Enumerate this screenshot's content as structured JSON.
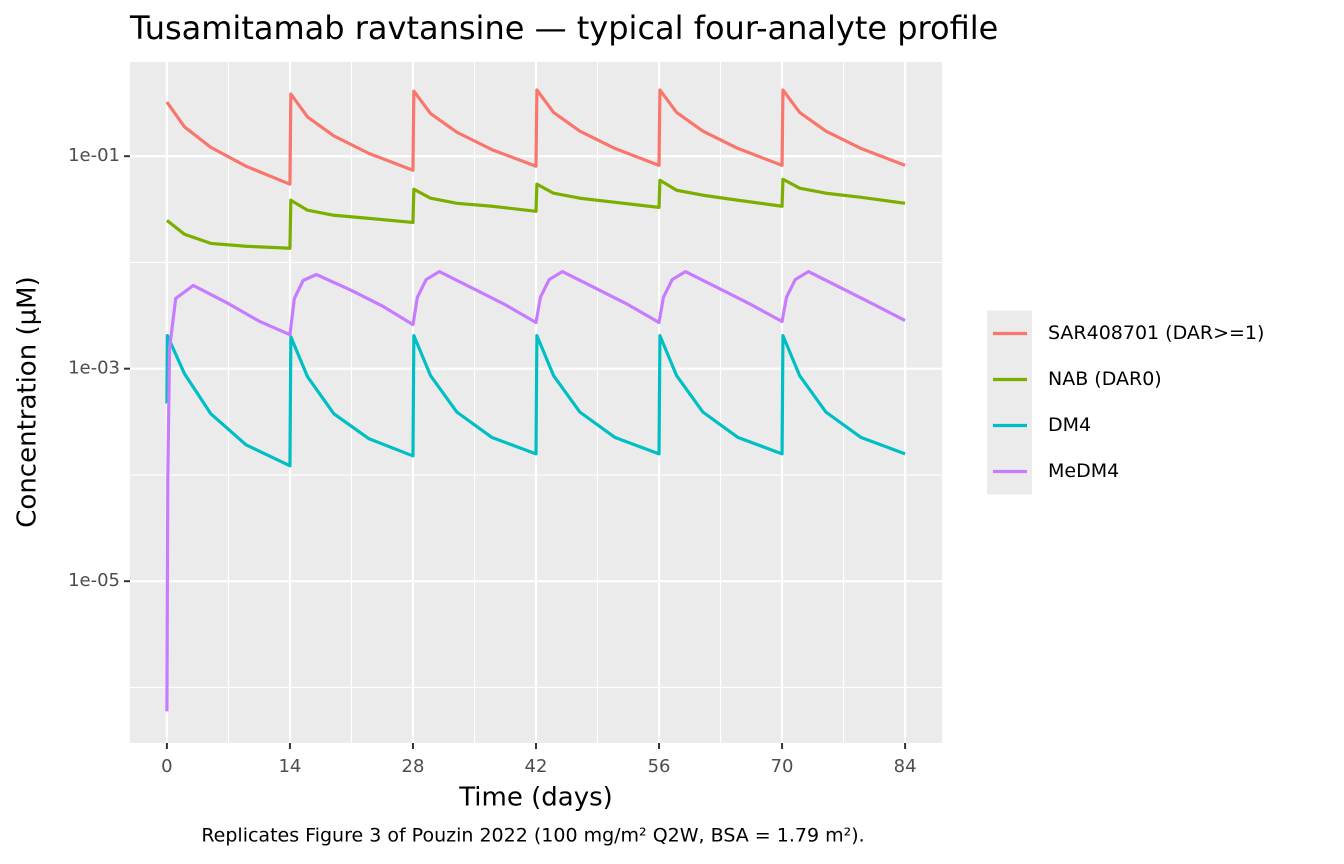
{
  "chart_data": {
    "type": "line",
    "title": "Tusamitamab ravtansine — typical four-analyte profile",
    "x_label": "Time (days)",
    "y_label": "Concentration (µM)",
    "caption": "Replicates Figure 3 of Pouzin 2022 (100 mg/m² Q2W, BSA = 1.79 m²).",
    "xlim": [
      -4.2,
      88.2
    ],
    "xticks": [
      0,
      14,
      28,
      42,
      56,
      70,
      84
    ],
    "x_minor_grid": [
      7,
      21,
      35,
      49,
      63,
      77
    ],
    "log_y": true,
    "ylim": [
      3e-07,
      0.77
    ],
    "yticks": [
      {
        "value": 0.1,
        "label": "1e-01"
      },
      {
        "value": 0.001,
        "label": "1e-03"
      },
      {
        "value": 1e-05,
        "label": "1e-05"
      }
    ],
    "y_minor_grid": [
      0.01,
      0.0001,
      1e-06
    ],
    "grid": true,
    "legend_position": "right",
    "series": [
      {
        "name": "SAR408701 (DAR>=1)",
        "color": "#F8766D",
        "x": [
          0,
          2,
          5,
          9,
          14,
          14.1,
          16,
          19,
          23,
          28,
          28.1,
          30,
          33,
          37,
          42,
          42.1,
          44,
          47,
          51,
          56,
          56.1,
          58,
          61,
          65,
          70,
          70.1,
          72,
          75,
          79,
          84
        ],
        "values": [
          0.323,
          0.189,
          0.121,
          0.0805,
          0.0545,
          0.385,
          0.234,
          0.155,
          0.106,
          0.0738,
          0.41,
          0.252,
          0.168,
          0.115,
          0.0805,
          0.42,
          0.258,
          0.172,
          0.118,
          0.082,
          0.42,
          0.258,
          0.172,
          0.118,
          0.082,
          0.42,
          0.258,
          0.172,
          0.118,
          0.082
        ]
      },
      {
        "name": "NAB (DAR0)",
        "color": "#7CAE00",
        "x": [
          0,
          2,
          5,
          9,
          14,
          14.1,
          16,
          19,
          23,
          28,
          28.1,
          30,
          33,
          37,
          42,
          42.1,
          44,
          47,
          51,
          56,
          56.1,
          58,
          61,
          65,
          70,
          70.1,
          72,
          75,
          79,
          84
        ],
        "values": [
          0.0249,
          0.0184,
          0.0151,
          0.0142,
          0.0136,
          0.0385,
          0.031,
          0.0278,
          0.026,
          0.0238,
          0.0489,
          0.0402,
          0.036,
          0.0338,
          0.0303,
          0.0545,
          0.0448,
          0.0402,
          0.0368,
          0.033,
          0.0594,
          0.0478,
          0.0429,
          0.0385,
          0.0338,
          0.0607,
          0.05,
          0.0448,
          0.041,
          0.036
        ]
      },
      {
        "name": "DM4",
        "color": "#00BFC4",
        "x": [
          0,
          0.05,
          2,
          5,
          9,
          14,
          14.1,
          16,
          19,
          23,
          28,
          28.1,
          30,
          33,
          37,
          42,
          42.1,
          44,
          47,
          51,
          56,
          56.1,
          58,
          61,
          65,
          70,
          70.1,
          72,
          75,
          79,
          84
        ],
        "values": [
          0.00047,
          0.00205,
          0.000897,
          0.000376,
          0.000192,
          0.000122,
          0.002,
          0.00084,
          0.000376,
          0.000219,
          0.000151,
          0.00205,
          0.00086,
          0.00039,
          0.000225,
          0.000158,
          0.00205,
          0.00086,
          0.00039,
          0.000225,
          0.000158,
          0.00205,
          0.00086,
          0.00039,
          0.000225,
          0.000158,
          0.00205,
          0.00086,
          0.00039,
          0.000225,
          0.000158
        ]
      },
      {
        "name": "MeDM4",
        "color": "#C77CFF",
        "x": [
          0,
          0.1,
          0.3,
          1,
          3,
          7,
          10.5,
          14,
          14.5,
          15.5,
          17,
          21,
          24.5,
          28,
          28.5,
          29.5,
          31,
          35,
          38.5,
          42,
          42.5,
          43.5,
          45,
          49,
          52.5,
          56,
          56.5,
          57.5,
          59,
          63,
          66.5,
          70,
          70.5,
          71.5,
          73,
          77,
          80.5,
          84
        ],
        "values": [
          5.95e-07,
          9.1e-05,
          0.00155,
          0.00458,
          0.00607,
          0.0041,
          0.0028,
          0.00209,
          0.00457,
          0.00676,
          0.0077,
          0.00545,
          0.0039,
          0.0026,
          0.0047,
          0.0069,
          0.0082,
          0.0056,
          0.004,
          0.00272,
          0.0047,
          0.0069,
          0.0082,
          0.0056,
          0.004,
          0.00272,
          0.0047,
          0.0069,
          0.0082,
          0.0056,
          0.004,
          0.00278,
          0.0047,
          0.0069,
          0.0082,
          0.0056,
          0.004,
          0.00284
        ]
      }
    ]
  }
}
